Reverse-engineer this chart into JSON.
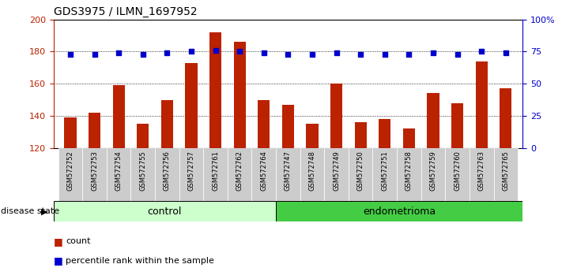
{
  "title": "GDS3975 / ILMN_1697952",
  "samples": [
    "GSM572752",
    "GSM572753",
    "GSM572754",
    "GSM572755",
    "GSM572756",
    "GSM572757",
    "GSM572761",
    "GSM572762",
    "GSM572764",
    "GSM572747",
    "GSM572748",
    "GSM572749",
    "GSM572750",
    "GSM572751",
    "GSM572758",
    "GSM572759",
    "GSM572760",
    "GSM572763",
    "GSM572765"
  ],
  "bar_values": [
    139,
    142,
    159,
    135,
    150,
    173,
    192,
    186,
    150,
    147,
    135,
    160,
    136,
    138,
    132,
    154,
    148,
    174,
    157
  ],
  "percentile_values": [
    73,
    73,
    74,
    73,
    74,
    75,
    76,
    75,
    74,
    73,
    73,
    74,
    73,
    73,
    73,
    74,
    73,
    75,
    74
  ],
  "control_count": 9,
  "endometrioma_count": 10,
  "ylim_left": [
    120,
    200
  ],
  "ylim_right": [
    0,
    100
  ],
  "yticks_left": [
    120,
    140,
    160,
    180,
    200
  ],
  "yticks_right": [
    0,
    25,
    50,
    75,
    100
  ],
  "ytick_right_labels": [
    "0",
    "25",
    "50",
    "75",
    "100%"
  ],
  "bar_color": "#bb2200",
  "percentile_color": "#0000cc",
  "control_color": "#ccffcc",
  "endometrioma_color": "#44cc44",
  "xticklabel_bg": "#cccccc",
  "label_bar": "count",
  "label_percentile": "percentile rank within the sample",
  "disease_state_label": "disease state",
  "group_control": "control",
  "group_endometrioma": "endometrioma",
  "gridline_yticks": [
    140,
    160,
    180
  ]
}
